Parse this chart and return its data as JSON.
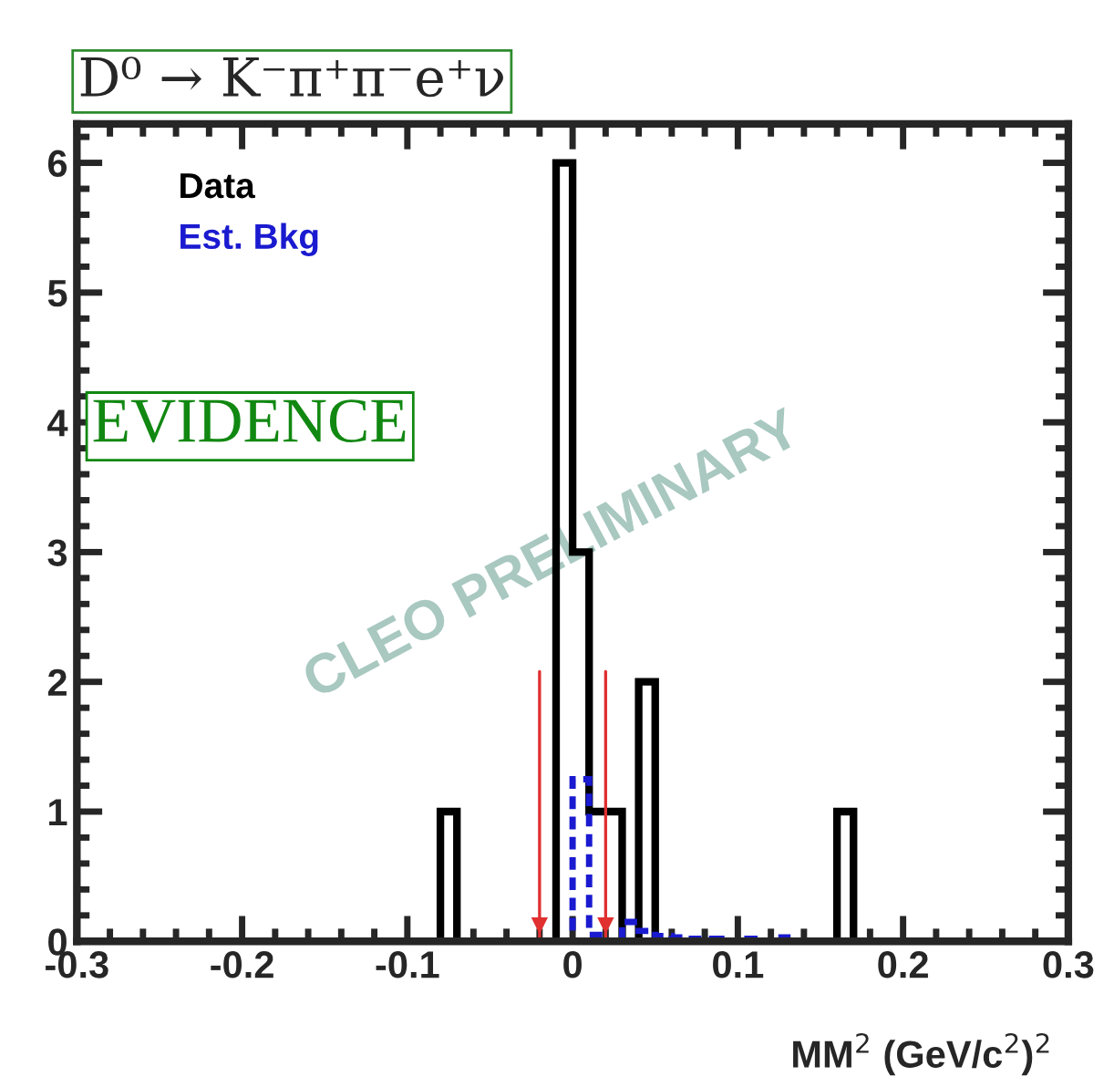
{
  "chart_data": {
    "type": "histogram",
    "title": "D⁰ → K⁻π⁺π⁻e⁺ν",
    "xlabel": "MM$^{2}$ (GeV/c$^{2}$)$^{2}$",
    "bins": [
      -0.3,
      -0.29,
      -0.28,
      -0.27,
      -0.26,
      -0.25,
      -0.24,
      -0.23,
      -0.22,
      -0.21,
      -0.2,
      -0.19,
      -0.18,
      -0.17,
      -0.16,
      -0.15,
      -0.14,
      -0.13,
      -0.12,
      -0.11,
      -0.1,
      -0.09,
      -0.08,
      -0.07,
      -0.06,
      -0.05,
      -0.04,
      -0.03,
      -0.02,
      -0.01,
      0,
      0.01,
      0.02,
      0.03,
      0.04,
      0.05,
      0.06,
      0.07,
      0.08,
      0.09,
      0.1,
      0.11,
      0.12,
      0.13,
      0.14,
      0.15,
      0.16,
      0.17,
      0.18,
      0.19,
      0.2,
      0.21,
      0.22,
      0.23,
      0.24,
      0.25,
      0.26,
      0.27,
      0.28,
      0.29,
      0.3
    ],
    "series": [
      {
        "name": "Data",
        "color": "#000000",
        "line_style": "solid",
        "values": [
          0,
          0,
          0,
          0,
          0,
          0,
          0,
          0,
          0,
          0,
          0,
          0,
          0,
          0,
          0,
          0,
          0,
          0,
          0,
          0,
          0,
          0,
          1,
          0,
          0,
          0,
          0,
          0,
          0,
          6,
          3,
          1,
          1,
          0,
          2,
          0,
          0,
          0,
          0,
          0,
          0,
          0,
          0,
          0,
          0,
          0,
          1,
          0,
          0,
          0,
          0,
          0,
          0,
          0,
          0,
          0,
          0,
          0,
          0,
          0
        ]
      },
      {
        "name": "Est. Bkg",
        "color": "#1a1ad0",
        "line_style": "dashed",
        "values": [
          0,
          0,
          0,
          0,
          0,
          0,
          0,
          0,
          0,
          0,
          0,
          0,
          0,
          0,
          0,
          0,
          0,
          0,
          0,
          0,
          0,
          0,
          0,
          0,
          0,
          0,
          0,
          0,
          0,
          0,
          1.25,
          0.05,
          0,
          0.15,
          0.08,
          0.04,
          0.03,
          0.02,
          0.02,
          0,
          0.02,
          0,
          0.03,
          0,
          0,
          0,
          0,
          0,
          0,
          0,
          0,
          0,
          0,
          0,
          0,
          0,
          0,
          0,
          0,
          0
        ]
      }
    ],
    "ref_lines": [
      {
        "axis": "x",
        "value": -0.02,
        "color": "#e03030"
      },
      {
        "axis": "x",
        "value": 0.02,
        "color": "#e03030"
      }
    ],
    "annotations": [
      "EVIDENCE",
      "CLEO PRELIMINARY"
    ],
    "xlim": [
      -0.3,
      0.3
    ],
    "xticks": [
      -0.3,
      -0.2,
      -0.1,
      0,
      0.1,
      0.2,
      0.3
    ],
    "ylim": [
      0,
      6.3
    ],
    "yticks": [
      0,
      1,
      2,
      3,
      4,
      5,
      6
    ],
    "legend": "top left",
    "grid": false
  }
}
